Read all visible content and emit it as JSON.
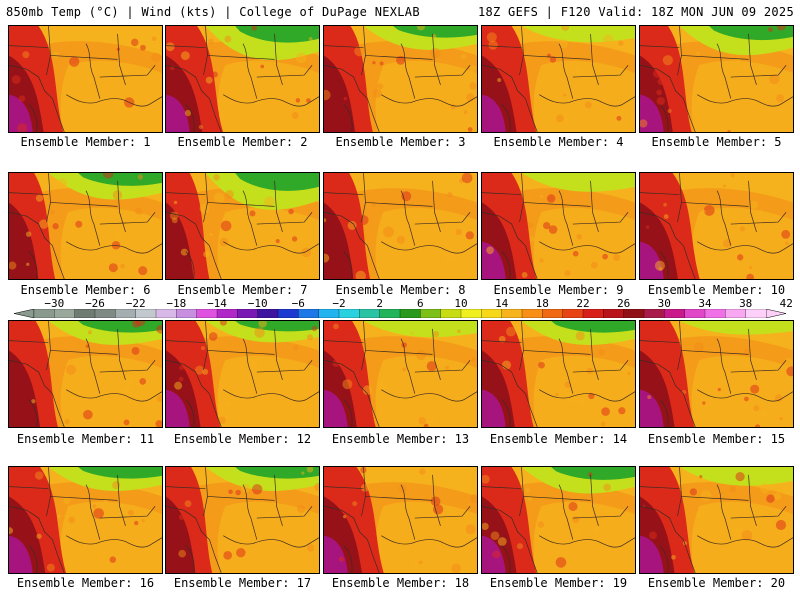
{
  "header": {
    "left": "850mb Temp (°C) | Wind (kts) | College of DuPage NEXLAB",
    "right": "18Z GEFS | F120 Valid: 18Z MON JUN 09 2025"
  },
  "panels": [
    {
      "label": "Ensemble Member: 1",
      "cool": 0.0,
      "hot": 0.6
    },
    {
      "label": "Ensemble Member: 2",
      "cool": 0.9,
      "hot": 0.7
    },
    {
      "label": "Ensemble Member: 3",
      "cool": 0.5,
      "hot": 0.4
    },
    {
      "label": "Ensemble Member: 4",
      "cool": 0.2,
      "hot": 0.6
    },
    {
      "label": "Ensemble Member: 5",
      "cool": 0.7,
      "hot": 0.5
    },
    {
      "label": "Ensemble Member: 6",
      "cool": 0.6,
      "hot": 0.3
    },
    {
      "label": "Ensemble Member: 7",
      "cool": 1.0,
      "hot": 0.2
    },
    {
      "label": "Ensemble Member: 8",
      "cool": 0.0,
      "hot": 0.3
    },
    {
      "label": "Ensemble Member: 9",
      "cool": 0.3,
      "hot": 0.6
    },
    {
      "label": "Ensemble Member: 10",
      "cool": 0.0,
      "hot": 0.8
    },
    {
      "label": "Ensemble Member: 11",
      "cool": 0.5,
      "hot": 0.4
    },
    {
      "label": "Ensemble Member: 12",
      "cool": 0.4,
      "hot": 0.6
    },
    {
      "label": "Ensemble Member: 13",
      "cool": 0.2,
      "hot": 0.5
    },
    {
      "label": "Ensemble Member: 14",
      "cool": 0.5,
      "hot": 0.5
    },
    {
      "label": "Ensemble Member: 15",
      "cool": 0.1,
      "hot": 0.6
    },
    {
      "label": "Ensemble Member: 16",
      "cool": 0.5,
      "hot": 0.7
    },
    {
      "label": "Ensemble Member: 17",
      "cool": 0.5,
      "hot": 0.3
    },
    {
      "label": "Ensemble Member: 18",
      "cool": 0.0,
      "hot": 0.8
    },
    {
      "label": "Ensemble Member: 19",
      "cool": 0.6,
      "hot": 0.6
    },
    {
      "label": "Ensemble Member: 20",
      "cool": 0.3,
      "hot": 0.6
    }
  ],
  "colorbar": {
    "labels": [
      "−30",
      "−26",
      "−22",
      "−18",
      "−14",
      "−10",
      "−6",
      "−2",
      "2",
      "6",
      "10",
      "14",
      "18",
      "22",
      "26",
      "30",
      "34",
      "38",
      "42"
    ],
    "colors": [
      "#8a9a8e",
      "#9aa89c",
      "#6e7c72",
      "#808a84",
      "#a4aeb0",
      "#c2c8ce",
      "#d8b8e6",
      "#c88ee0",
      "#e052e0",
      "#b028c8",
      "#7a1ab4",
      "#3c14a0",
      "#1c3ad0",
      "#1e78e8",
      "#22b4f0",
      "#2ad2e0",
      "#2ac4a4",
      "#22b45a",
      "#2a9a1e",
      "#7cc018",
      "#c8dc14",
      "#f0f020",
      "#f6d818",
      "#f8b41c",
      "#f89018",
      "#f06a14",
      "#e84414",
      "#d8201a",
      "#b8141a",
      "#901016",
      "#a81a4a",
      "#c81a8a",
      "#e048c8",
      "#f070e8",
      "#f8a8f0",
      "#fcd0f8"
    ]
  },
  "legend_colors": {
    "cool": "#30a828",
    "mid": "#c4e01c",
    "warm": "#f6b21c",
    "orange": "#f28a18",
    "hot": "#dc2a1a",
    "veryhot": "#8e1018",
    "extreme": "#a8147e",
    "border": "#3c2a22"
  }
}
